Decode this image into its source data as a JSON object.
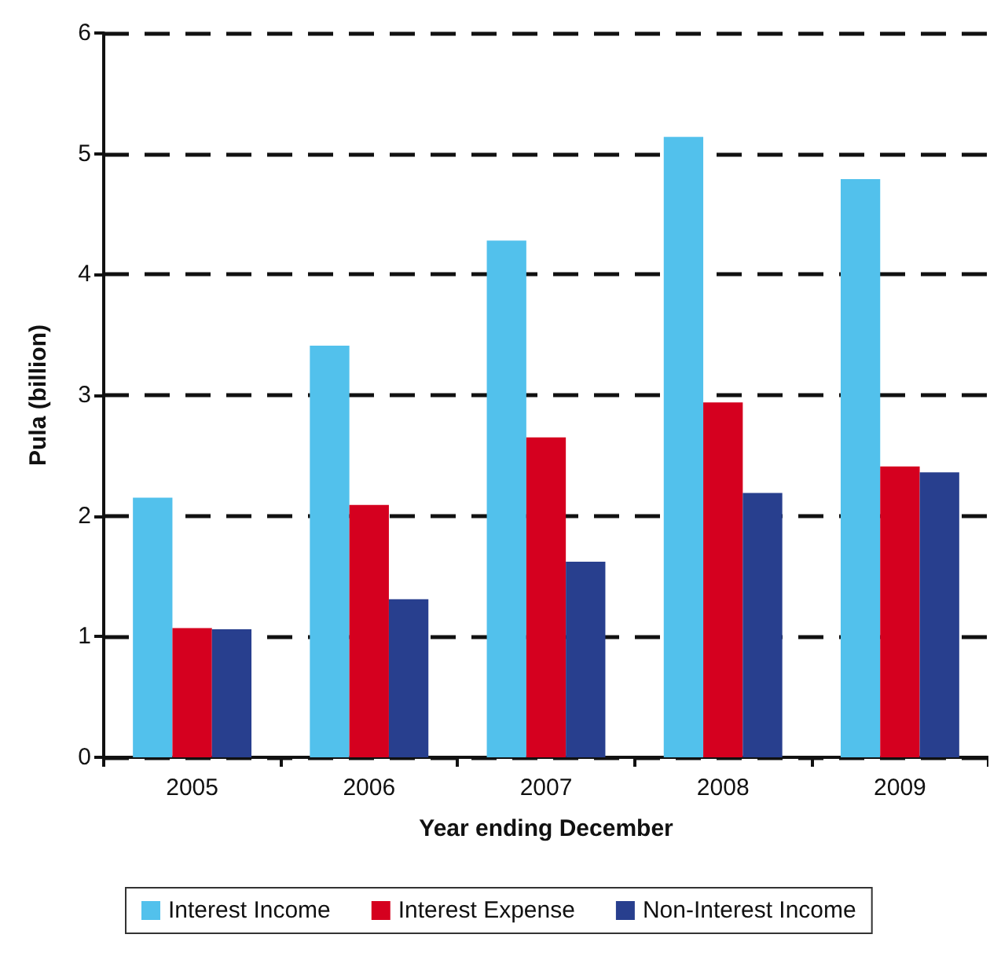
{
  "chart_data": {
    "type": "bar",
    "xlabel": "Year ending December",
    "ylabel": "Pula (billion)",
    "categories": [
      "2005",
      "2006",
      "2007",
      "2008",
      "2009"
    ],
    "series": [
      {
        "name": "Interest Income",
        "color": "#52c1ec",
        "values": [
          2.15,
          3.41,
          4.28,
          5.14,
          4.79
        ]
      },
      {
        "name": "Interest Expense",
        "color": "#d5001f",
        "values": [
          1.07,
          2.09,
          2.65,
          2.94,
          2.41
        ]
      },
      {
        "name": "Non-Interest Income",
        "color": "#283f8e",
        "values": [
          1.06,
          1.31,
          1.62,
          2.19,
          2.36
        ]
      }
    ],
    "ylim": [
      0,
      6
    ],
    "yticks": [
      0,
      1,
      2,
      3,
      4,
      5,
      6
    ],
    "grid": "y",
    "legend": "bottom"
  }
}
